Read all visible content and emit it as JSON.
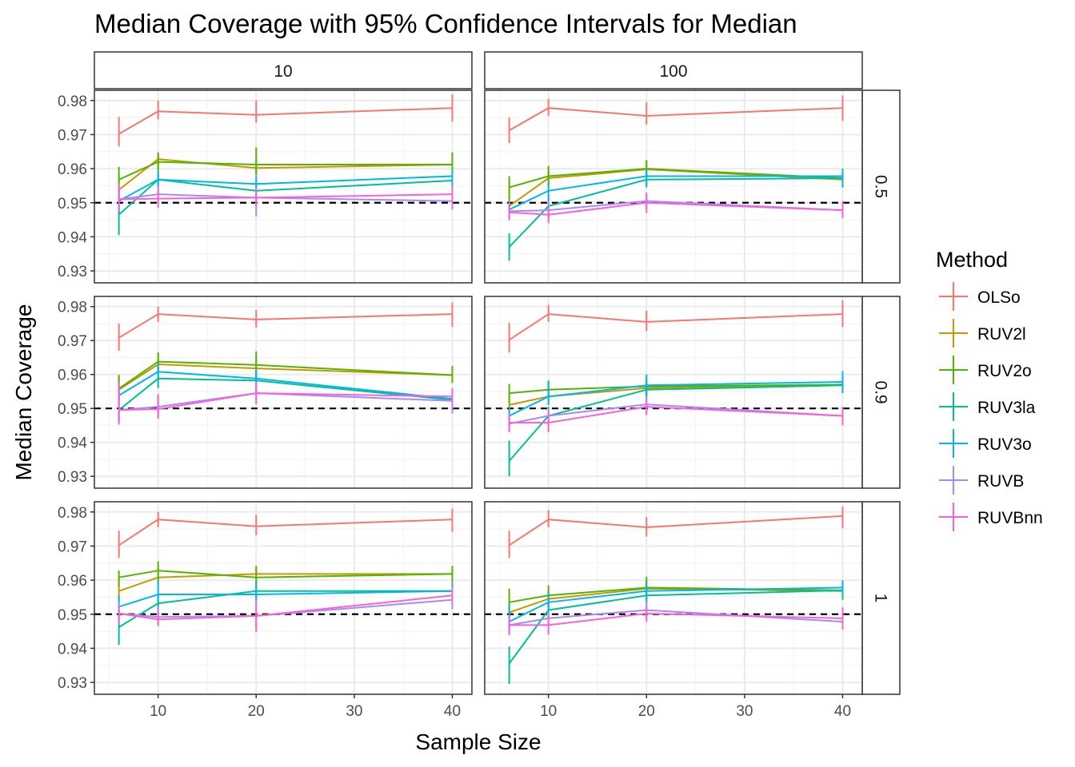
{
  "chart_data": {
    "type": "line",
    "title": "Median Coverage with 95% Confidence Intervals for Median",
    "xlabel": "Sample Size",
    "ylabel": "Median Coverage",
    "xlim": [
      3.5,
      42.0
    ],
    "ylim": [
      0.9265,
      0.983
    ],
    "x_ticks": [
      10,
      20,
      30,
      40
    ],
    "x_tick_labels": [
      "10",
      "20",
      "30",
      "40"
    ],
    "y_ticks": [
      0.93,
      0.94,
      0.95,
      0.96,
      0.97,
      0.98
    ],
    "y_tick_labels": [
      "0.93",
      "0.94",
      "0.95",
      "0.96",
      "0.97",
      "0.98"
    ],
    "reference_line": 0.95,
    "grid": true,
    "legend": {
      "title": "Method",
      "placement": "right"
    },
    "column_facets": [
      "10",
      "100"
    ],
    "row_facets": [
      "0.5",
      "0.9",
      "1"
    ],
    "x": [
      6,
      10,
      20,
      40
    ],
    "methods": [
      {
        "name": "OLSo",
        "color": "#F8766D"
      },
      {
        "name": "RUV2l",
        "color": "#C49A00"
      },
      {
        "name": "RUV2o",
        "color": "#53B400"
      },
      {
        "name": "RUV3la",
        "color": "#00C094"
      },
      {
        "name": "RUV3o",
        "color": "#00B6EB"
      },
      {
        "name": "RUVB",
        "color": "#A58AFF"
      },
      {
        "name": "RUVBnn",
        "color": "#FB61D7"
      }
    ],
    "panels": [
      {
        "col": "10",
        "row": "0.5",
        "series": [
          {
            "name": "OLSo",
            "y": [
              0.9702,
              0.9768,
              0.9758,
              0.9778
            ],
            "lo": [
              0.9665,
              0.9745,
              0.9735,
              0.9738
            ],
            "hi": [
              0.9752,
              0.98,
              0.98,
              0.9818
            ]
          },
          {
            "name": "RUV2l",
            "y": [
              0.9538,
              0.9628,
              0.9602,
              0.9612
            ],
            "lo": [
              0.95,
              0.96,
              0.958,
              0.959
            ],
            "hi": [
              0.958,
              0.9645,
              0.9628,
              0.964
            ]
          },
          {
            "name": "RUV2o",
            "y": [
              0.9568,
              0.962,
              0.9612,
              0.9612
            ],
            "lo": [
              0.9525,
              0.9595,
              0.9585,
              0.9585
            ],
            "hi": [
              0.9605,
              0.9648,
              0.9662,
              0.9648
            ]
          },
          {
            "name": "RUV3la",
            "y": [
              0.9465,
              0.9568,
              0.9535,
              0.9565
            ],
            "lo": [
              0.9405,
              0.954,
              0.9505,
              0.954
            ],
            "hi": [
              0.951,
              0.9595,
              0.9565,
              0.9595
            ]
          },
          {
            "name": "RUV3o",
            "y": [
              0.9505,
              0.9568,
              0.9555,
              0.9578
            ],
            "lo": [
              0.947,
              0.9545,
              0.953,
              0.9555
            ],
            "hi": [
              0.954,
              0.959,
              0.958,
              0.9598
            ]
          },
          {
            "name": "RUVB",
            "y": [
              0.951,
              0.9525,
              0.9515,
              0.9505
            ],
            "lo": [
              0.948,
              0.9495,
              0.946,
              0.948
            ],
            "hi": [
              0.954,
              0.955,
              0.9545,
              0.953
            ]
          },
          {
            "name": "RUVBnn",
            "y": [
              0.951,
              0.9512,
              0.9515,
              0.9525
            ],
            "lo": [
              0.9475,
              0.9485,
              0.949,
              0.95
            ],
            "hi": [
              0.9555,
              0.9545,
              0.9545,
              0.955
            ]
          }
        ]
      },
      {
        "col": "100",
        "row": "0.5",
        "series": [
          {
            "name": "OLSo",
            "y": [
              0.9712,
              0.9778,
              0.9755,
              0.9778
            ],
            "lo": [
              0.9675,
              0.9755,
              0.973,
              0.974
            ],
            "hi": [
              0.975,
              0.9805,
              0.9795,
              0.9815
            ]
          },
          {
            "name": "RUV2l",
            "y": [
              0.949,
              0.9572,
              0.9598,
              0.9568
            ],
            "lo": [
              0.9465,
              0.9545,
              0.9575,
              0.9545
            ],
            "hi": [
              0.952,
              0.96,
              0.9625,
              0.9595
            ]
          },
          {
            "name": "RUV2o",
            "y": [
              0.9545,
              0.9578,
              0.96,
              0.9572
            ],
            "lo": [
              0.951,
              0.9548,
              0.9575,
              0.9548
            ],
            "hi": [
              0.9578,
              0.9608,
              0.9625,
              0.9598
            ]
          },
          {
            "name": "RUV3la",
            "y": [
              0.937,
              0.949,
              0.9568,
              0.9572
            ],
            "lo": [
              0.933,
              0.9455,
              0.9545,
              0.9545
            ],
            "hi": [
              0.941,
              0.952,
              0.959,
              0.9598
            ]
          },
          {
            "name": "RUV3o",
            "y": [
              0.948,
              0.9535,
              0.9578,
              0.9578
            ],
            "lo": [
              0.9455,
              0.951,
              0.9555,
              0.9555
            ],
            "hi": [
              0.9505,
              0.956,
              0.96,
              0.96
            ]
          },
          {
            "name": "RUVB",
            "y": [
              0.9475,
              0.9478,
              0.9505,
              0.9478
            ],
            "lo": [
              0.9455,
              0.9455,
              0.948,
              0.9455
            ],
            "hi": [
              0.95,
              0.9505,
              0.953,
              0.9505
            ]
          },
          {
            "name": "RUVBnn",
            "y": [
              0.9472,
              0.9465,
              0.95,
              0.9478
            ],
            "lo": [
              0.9448,
              0.944,
              0.947,
              0.9455
            ],
            "hi": [
              0.95,
              0.9495,
              0.9525,
              0.9505
            ]
          }
        ]
      },
      {
        "col": "10",
        "row": "0.9",
        "series": [
          {
            "name": "OLSo",
            "y": [
              0.9708,
              0.9778,
              0.9762,
              0.9778
            ],
            "lo": [
              0.967,
              0.9755,
              0.9738,
              0.974
            ],
            "hi": [
              0.975,
              0.98,
              0.979,
              0.9812
            ]
          },
          {
            "name": "RUV2l",
            "y": [
              0.9555,
              0.963,
              0.9618,
              0.9598
            ],
            "lo": [
              0.952,
              0.9605,
              0.9585,
              0.9575
            ],
            "hi": [
              0.96,
              0.966,
              0.9648,
              0.962
            ]
          },
          {
            "name": "RUV2o",
            "y": [
              0.9558,
              0.9638,
              0.9628,
              0.9598
            ],
            "lo": [
              0.952,
              0.961,
              0.959,
              0.9575
            ],
            "hi": [
              0.9595,
              0.9665,
              0.9668,
              0.9625
            ]
          },
          {
            "name": "RUV3la",
            "y": [
              0.9495,
              0.9588,
              0.9582,
              0.9525
            ],
            "lo": [
              0.9462,
              0.956,
              0.955,
              0.95
            ],
            "hi": [
              0.953,
              0.9612,
              0.9612,
              0.955
            ]
          },
          {
            "name": "RUV3o",
            "y": [
              0.9538,
              0.9608,
              0.9588,
              0.9528
            ],
            "lo": [
              0.95,
              0.9585,
              0.956,
              0.9505
            ],
            "hi": [
              0.9575,
              0.963,
              0.9615,
              0.955
            ]
          },
          {
            "name": "RUVB",
            "y": [
              0.9495,
              0.9505,
              0.9545,
              0.9522
            ],
            "lo": [
              0.946,
              0.9475,
              0.952,
              0.9485
            ],
            "hi": [
              0.954,
              0.9535,
              0.957,
              0.9548
            ]
          },
          {
            "name": "RUVBnn",
            "y": [
              0.9495,
              0.9498,
              0.9545,
              0.9535
            ],
            "lo": [
              0.9452,
              0.947,
              0.9512,
              0.9505
            ],
            "hi": [
              0.9578,
              0.9542,
              0.9578,
              0.956
            ]
          }
        ]
      },
      {
        "col": "100",
        "row": "0.9",
        "series": [
          {
            "name": "OLSo",
            "y": [
              0.9702,
              0.9778,
              0.9755,
              0.9778
            ],
            "lo": [
              0.9665,
              0.9755,
              0.9728,
              0.974
            ],
            "hi": [
              0.9752,
              0.9805,
              0.9788,
              0.9818
            ]
          },
          {
            "name": "RUV2l",
            "y": [
              0.951,
              0.9535,
              0.956,
              0.957
            ],
            "lo": [
              0.9485,
              0.951,
              0.9535,
              0.9545
            ],
            "hi": [
              0.9535,
              0.956,
              0.9585,
              0.9595
            ]
          },
          {
            "name": "RUV2o",
            "y": [
              0.9545,
              0.9555,
              0.9565,
              0.957
            ],
            "lo": [
              0.9515,
              0.9528,
              0.954,
              0.9545
            ],
            "hi": [
              0.9572,
              0.9582,
              0.959,
              0.9595
            ]
          },
          {
            "name": "RUV3la",
            "y": [
              0.9345,
              0.9478,
              0.9555,
              0.9568
            ],
            "lo": [
              0.93,
              0.945,
              0.953,
              0.9545
            ],
            "hi": [
              0.9405,
              0.9505,
              0.958,
              0.959
            ]
          },
          {
            "name": "RUV3o",
            "y": [
              0.9478,
              0.9535,
              0.9568,
              0.9578
            ],
            "lo": [
              0.945,
              0.951,
              0.9542,
              0.955
            ],
            "hi": [
              0.9505,
              0.9578,
              0.96,
              0.961
            ]
          },
          {
            "name": "RUVB",
            "y": [
              0.9455,
              0.9478,
              0.9512,
              0.9478
            ],
            "lo": [
              0.9432,
              0.9455,
              0.9488,
              0.9455
            ],
            "hi": [
              0.948,
              0.95,
              0.9535,
              0.95
            ]
          },
          {
            "name": "RUVBnn",
            "y": [
              0.9458,
              0.9458,
              0.9505,
              0.9478
            ],
            "lo": [
              0.943,
              0.943,
              0.948,
              0.945
            ],
            "hi": [
              0.9485,
              0.9488,
              0.9528,
              0.9505
            ]
          }
        ]
      },
      {
        "col": "10",
        "row": "1",
        "series": [
          {
            "name": "OLSo",
            "y": [
              0.9702,
              0.9778,
              0.9758,
              0.9778
            ],
            "lo": [
              0.9665,
              0.9755,
              0.9732,
              0.9742
            ],
            "hi": [
              0.9745,
              0.98,
              0.9792,
              0.981
            ]
          },
          {
            "name": "RUV2l",
            "y": [
              0.9568,
              0.9608,
              0.9618,
              0.9618
            ],
            "lo": [
              0.9535,
              0.9585,
              0.9592,
              0.9592
            ],
            "hi": [
              0.9605,
              0.9638,
              0.9642,
              0.9642
            ]
          },
          {
            "name": "RUV2o",
            "y": [
              0.9608,
              0.9628,
              0.9608,
              0.9618
            ],
            "lo": [
              0.958,
              0.96,
              0.9578,
              0.9595
            ],
            "hi": [
              0.9628,
              0.9655,
              0.9638,
              0.964
            ]
          },
          {
            "name": "RUV3la",
            "y": [
              0.9462,
              0.9532,
              0.9568,
              0.9568
            ],
            "lo": [
              0.941,
              0.95,
              0.954,
              0.9545
            ],
            "hi": [
              0.951,
              0.9558,
              0.9592,
              0.9592
            ]
          },
          {
            "name": "RUV3o",
            "y": [
              0.9522,
              0.9558,
              0.9558,
              0.9568
            ],
            "lo": [
              0.9485,
              0.9535,
              0.9535,
              0.9542
            ],
            "hi": [
              0.9555,
              0.96,
              0.9585,
              0.959
            ]
          },
          {
            "name": "RUVB",
            "y": [
              0.9502,
              0.9492,
              0.9495,
              0.9542
            ],
            "lo": [
              0.9475,
              0.947,
              0.9462,
              0.9515
            ],
            "hi": [
              0.953,
              0.952,
              0.9528,
              0.957
            ]
          },
          {
            "name": "RUVBnn",
            "y": [
              0.9502,
              0.9485,
              0.9495,
              0.9555
            ],
            "lo": [
              0.947,
              0.9465,
              0.9448,
              0.953
            ],
            "hi": [
              0.9525,
              0.9505,
              0.954,
              0.958
            ]
          }
        ]
      },
      {
        "col": "100",
        "row": "1",
        "series": [
          {
            "name": "OLSo",
            "y": [
              0.9702,
              0.9778,
              0.9755,
              0.9788
            ],
            "lo": [
              0.9665,
              0.9755,
              0.9728,
              0.9752
            ],
            "hi": [
              0.9745,
              0.9805,
              0.9785,
              0.9815
            ]
          },
          {
            "name": "RUV2l",
            "y": [
              0.9505,
              0.9545,
              0.9575,
              0.9568
            ],
            "lo": [
              0.948,
              0.952,
              0.955,
              0.9542
            ],
            "hi": [
              0.953,
              0.957,
              0.96,
              0.9595
            ]
          },
          {
            "name": "RUV2o",
            "y": [
              0.9535,
              0.9555,
              0.9578,
              0.957
            ],
            "lo": [
              0.95,
              0.953,
              0.955,
              0.9545
            ],
            "hi": [
              0.9575,
              0.9585,
              0.961,
              0.9595
            ]
          },
          {
            "name": "RUV3la",
            "y": [
              0.9355,
              0.9512,
              0.9555,
              0.957
            ],
            "lo": [
              0.9295,
              0.9488,
              0.953,
              0.9545
            ],
            "hi": [
              0.9405,
              0.9535,
              0.958,
              0.9595
            ]
          },
          {
            "name": "RUV3o",
            "y": [
              0.9478,
              0.9535,
              0.9568,
              0.9578
            ],
            "lo": [
              0.9452,
              0.951,
              0.9542,
              0.9555
            ],
            "hi": [
              0.953,
              0.956,
              0.9595,
              0.96
            ]
          },
          {
            "name": "RUVB",
            "y": [
              0.9468,
              0.9488,
              0.9512,
              0.9478
            ],
            "lo": [
              0.9445,
              0.9465,
              0.9488,
              0.9455
            ],
            "hi": [
              0.9492,
              0.951,
              0.9535,
              0.95
            ]
          },
          {
            "name": "RUVBnn",
            "y": [
              0.9468,
              0.9468,
              0.9502,
              0.9488
            ],
            "lo": [
              0.9438,
              0.944,
              0.9478,
              0.9455
            ],
            "hi": [
              0.9495,
              0.9495,
              0.9525,
              0.952
            ]
          }
        ]
      }
    ]
  }
}
